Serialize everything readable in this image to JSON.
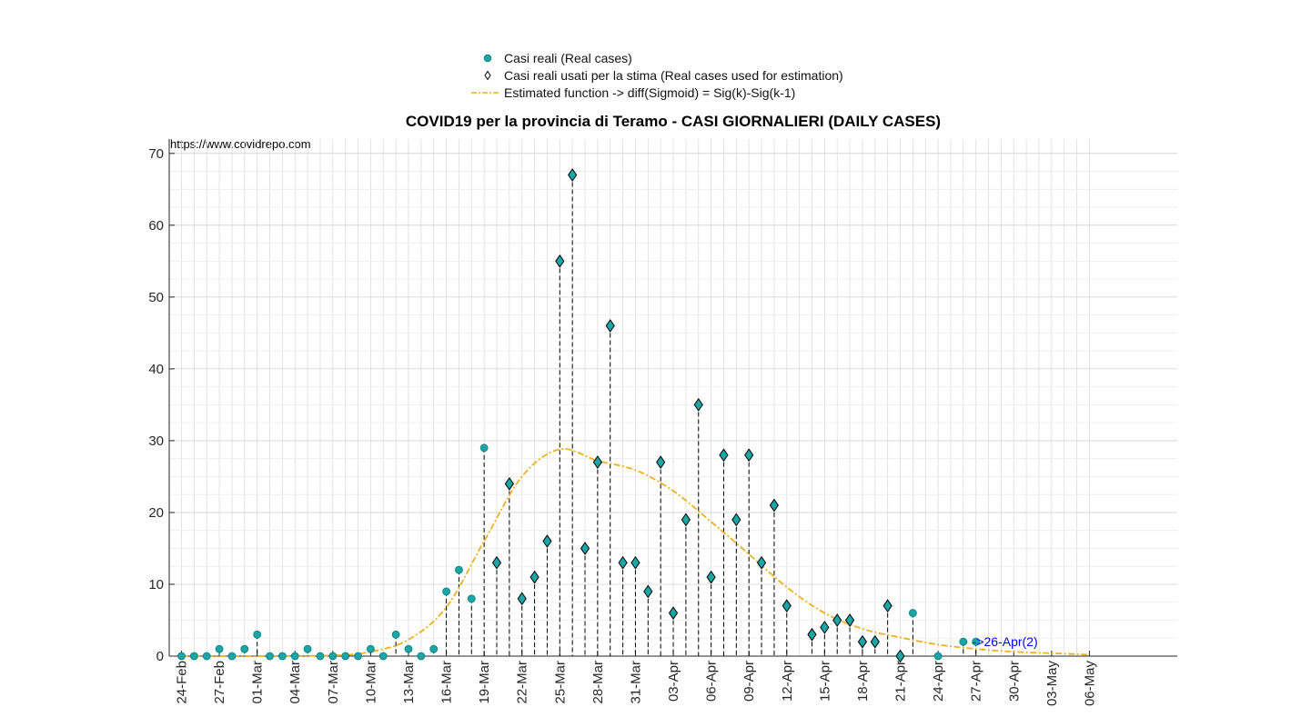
{
  "legend": {
    "real_cases": "Casi reali (Real cases)",
    "used_cases": "Casi reali usati per la stima (Real cases used for estimation)",
    "estimated": "Estimated function -> diff(Sigmoid) = Sig(k)-Sig(k-1)"
  },
  "source_note": "https://www.covidrepo.com",
  "chart_data": {
    "type": "scatter",
    "title": "COVID19 per la provincia di Teramo - CASI GIORNALIERI (DAILY CASES)",
    "xlabel": "",
    "ylabel": "",
    "ylim": [
      0,
      72
    ],
    "yticks": [
      0,
      10,
      20,
      30,
      40,
      50,
      60,
      70
    ],
    "x_range": [
      "24-Feb",
      "06-May"
    ],
    "x_tick_labels": [
      "24-Feb",
      "27-Feb",
      "01-Mar",
      "04-Mar",
      "07-Mar",
      "10-Mar",
      "13-Mar",
      "16-Mar",
      "19-Mar",
      "22-Mar",
      "25-Mar",
      "28-Mar",
      "31-Mar",
      "03-Apr",
      "06-Apr",
      "09-Apr",
      "12-Apr",
      "15-Apr",
      "18-Apr",
      "21-Apr",
      "24-Apr",
      "27-Apr",
      "30-Apr",
      "03-May",
      "06-May"
    ],
    "grid": true,
    "legend_position": "top",
    "colors": {
      "points": "#1aa6a6",
      "fit": "#edb120",
      "annotation": "#0000ff"
    },
    "series": [
      {
        "name": "Casi reali (Real cases)",
        "marker": "circle",
        "x": [
          "24-Feb",
          "25-Feb",
          "26-Feb",
          "27-Feb",
          "28-Feb",
          "29-Feb",
          "01-Mar",
          "02-Mar",
          "03-Mar",
          "04-Mar",
          "05-Mar",
          "06-Mar",
          "07-Mar",
          "08-Mar",
          "09-Mar",
          "10-Mar",
          "11-Mar",
          "12-Mar",
          "13-Mar",
          "14-Mar",
          "15-Mar",
          "16-Mar",
          "17-Mar",
          "18-Mar",
          "19-Mar",
          "22-Apr",
          "24-Apr",
          "26-Apr",
          "27-Apr"
        ],
        "y": [
          0,
          0,
          0,
          1,
          0,
          1,
          3,
          0,
          0,
          0,
          1,
          0,
          0,
          0,
          0,
          1,
          0,
          3,
          1,
          0,
          1,
          9,
          12,
          8,
          29,
          6,
          0,
          2,
          2
        ]
      },
      {
        "name": "Casi reali usati per la stima (Real cases used for estimation)",
        "marker": "diamond",
        "x": [
          "20-Mar",
          "21-Mar",
          "22-Mar",
          "23-Mar",
          "24-Mar",
          "25-Mar",
          "26-Mar",
          "27-Mar",
          "28-Mar",
          "29-Mar",
          "30-Mar",
          "31-Mar",
          "01-Apr",
          "02-Apr",
          "03-Apr",
          "04-Apr",
          "05-Apr",
          "06-Apr",
          "07-Apr",
          "08-Apr",
          "09-Apr",
          "10-Apr",
          "11-Apr",
          "12-Apr",
          "14-Apr",
          "15-Apr",
          "16-Apr",
          "17-Apr",
          "18-Apr",
          "19-Apr",
          "20-Apr",
          "21-Apr"
        ],
        "y": [
          13,
          24,
          8,
          11,
          16,
          55,
          67,
          15,
          27,
          46,
          13,
          13,
          9,
          27,
          6,
          19,
          35,
          11,
          28,
          19,
          28,
          13,
          21,
          7,
          3,
          4,
          5,
          5,
          2,
          2,
          7,
          0
        ]
      },
      {
        "name": "Estimated function -> diff(Sigmoid) = Sig(k)-Sig(k-1)",
        "type": "line",
        "x": [
          "24-Feb",
          "01-Mar",
          "07-Mar",
          "10-Mar",
          "13-Mar",
          "16-Mar",
          "19-Mar",
          "22-Mar",
          "25-Mar",
          "28-Mar",
          "31-Mar",
          "03-Apr",
          "06-Apr",
          "09-Apr",
          "12-Apr",
          "15-Apr",
          "18-Apr",
          "21-Apr",
          "24-Apr",
          "27-Apr",
          "30-Apr",
          "03-May",
          "06-May"
        ],
        "y": [
          0,
          0,
          0.1,
          0.6,
          2.3,
          6.8,
          16,
          25,
          28.8,
          27.2,
          25.9,
          23,
          18.7,
          14.2,
          9.6,
          6,
          3.8,
          2.6,
          1.6,
          1,
          0.6,
          0.4,
          0.2
        ]
      }
    ],
    "annotations": [
      {
        "x": "27-Apr",
        "y": 2,
        "text": "->26-Apr(2)"
      }
    ]
  }
}
